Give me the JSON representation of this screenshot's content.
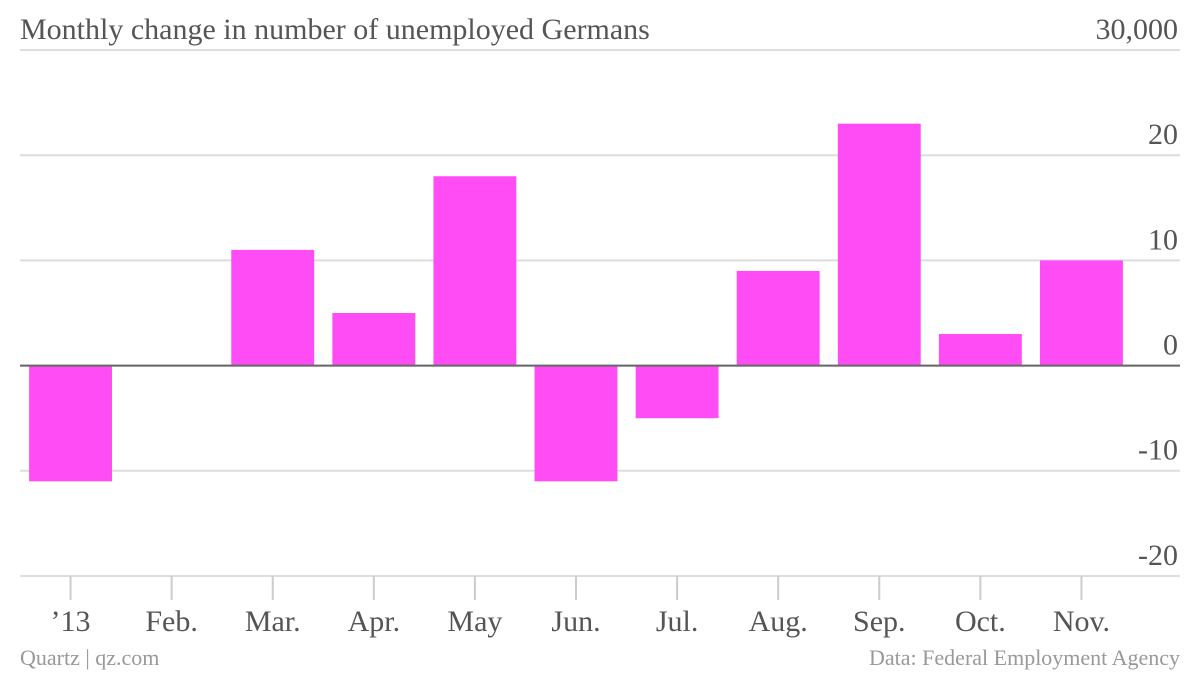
{
  "chart_data": {
    "type": "bar",
    "title": "Monthly change in number of unemployed Germans",
    "categories": [
      "’13",
      "Feb.",
      "Mar.",
      "Apr.",
      "May",
      "Jun.",
      "Jul.",
      "Aug.",
      "Sep.",
      "Oct.",
      "Nov."
    ],
    "values": [
      -11,
      0,
      11,
      5,
      18,
      -11,
      -5,
      9,
      23,
      3,
      10
    ],
    "color": "#ff4cf5",
    "ylim": [
      -20,
      30
    ],
    "yticks": [
      -20,
      -10,
      0,
      10,
      20,
      {
        "value": 30,
        "label": "30,000"
      }
    ],
    "grid": true,
    "source": "Data: Federal Employment Agency",
    "credit": "Quartz | qz.com"
  }
}
